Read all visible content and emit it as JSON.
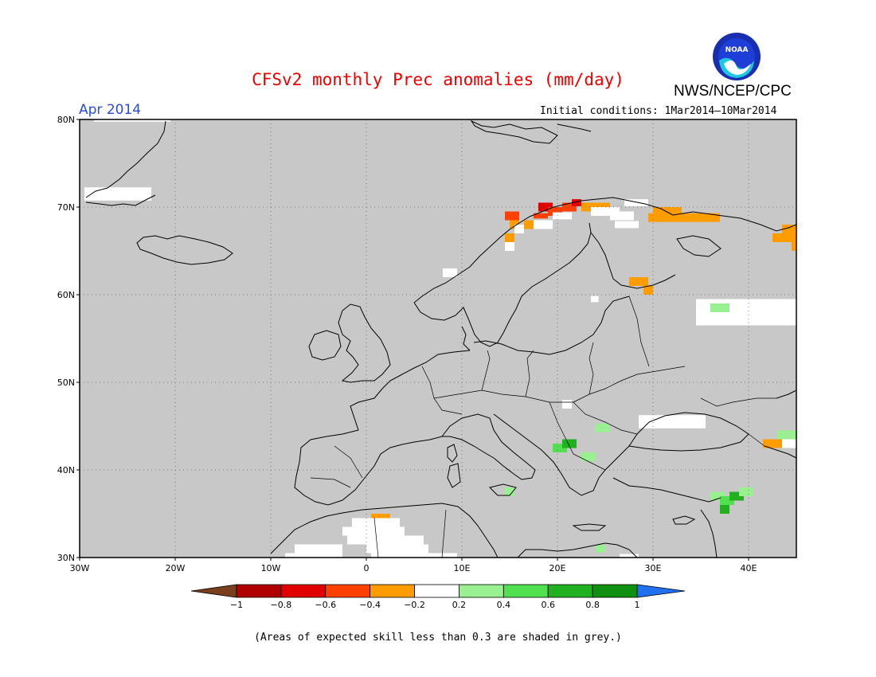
{
  "title": "CFSv2 monthly Prec anomalies (mm/day)",
  "agency": "NWS/NCEP/CPC",
  "logo_text": "NOAA",
  "month_label": "Apr 2014",
  "initial_conditions": "Initial conditions: 1Mar2014–10Mar2014",
  "footnote": "(Areas of expected skill less than 0.3 are shaded in grey.)",
  "map": {
    "lon_range": [
      -30,
      45
    ],
    "lat_range": [
      30,
      80
    ],
    "skill_mask_color": "#c8c8c8",
    "lat_labels": [
      "30N",
      "40N",
      "50N",
      "60N",
      "70N",
      "80N"
    ],
    "lon_labels": [
      "30W",
      "20W",
      "10W",
      "0",
      "10E",
      "20E",
      "30E",
      "40E"
    ]
  },
  "colorbar": {
    "labels": [
      "−1",
      "−0.8",
      "−0.6",
      "−0.4",
      "−0.2",
      "0.2",
      "0.4",
      "0.6",
      "0.8",
      "1"
    ],
    "colors": [
      "#7b3f1e",
      "#b00000",
      "#e00000",
      "#ff4000",
      "#ff9c00",
      "#ffffff",
      "#98f090",
      "#50e050",
      "#20b020",
      "#109010",
      "#2070f0"
    ]
  },
  "anomaly_cells": [
    {
      "lon": -28.5,
      "lat": 80.0,
      "w": 3.5,
      "h": 0.5,
      "c": "#ffffff"
    },
    {
      "lon": -25.0,
      "lat": 80.0,
      "w": 4.5,
      "h": 0.5,
      "c": "#ffffff"
    },
    {
      "lon": -29.5,
      "lat": 71.5,
      "w": 7.0,
      "h": 1.5,
      "c": "#ffffff"
    },
    {
      "lon": 8.0,
      "lat": 62.5,
      "w": 1.5,
      "h": 1.0,
      "c": "#ffffff"
    },
    {
      "lon": 14.5,
      "lat": 69.0,
      "w": 1.5,
      "h": 1.0,
      "c": "#ff4000"
    },
    {
      "lon": 15.0,
      "lat": 68.0,
      "w": 1.0,
      "h": 1.0,
      "c": "#ff9c00"
    },
    {
      "lon": 14.5,
      "lat": 66.5,
      "w": 1.0,
      "h": 1.0,
      "c": "#ff9c00"
    },
    {
      "lon": 15.5,
      "lat": 67.5,
      "w": 1.0,
      "h": 1.0,
      "c": "#ffffff"
    },
    {
      "lon": 14.5,
      "lat": 65.5,
      "w": 1.0,
      "h": 1.0,
      "c": "#ffffff"
    },
    {
      "lon": 16.5,
      "lat": 68.0,
      "w": 1.0,
      "h": 1.0,
      "c": "#ff9c00"
    },
    {
      "lon": 17.5,
      "lat": 69.0,
      "w": 1.5,
      "h": 0.6,
      "c": "#ff4000"
    },
    {
      "lon": 18.0,
      "lat": 70.0,
      "w": 1.5,
      "h": 1.0,
      "c": "#e00000"
    },
    {
      "lon": 19.0,
      "lat": 69.5,
      "w": 1.5,
      "h": 1.0,
      "c": "#ff4000"
    },
    {
      "lon": 20.5,
      "lat": 70.0,
      "w": 1.5,
      "h": 1.0,
      "c": "#ff4000"
    },
    {
      "lon": 21.5,
      "lat": 70.5,
      "w": 1.0,
      "h": 0.8,
      "c": "#e00000"
    },
    {
      "lon": 22.5,
      "lat": 70.0,
      "w": 3.0,
      "h": 1.0,
      "c": "#ff9c00"
    },
    {
      "lon": 23.5,
      "lat": 69.5,
      "w": 3.0,
      "h": 1.0,
      "c": "#ffffff"
    },
    {
      "lon": 25.5,
      "lat": 69.0,
      "w": 2.5,
      "h": 1.0,
      "c": "#ffffff"
    },
    {
      "lon": 17.5,
      "lat": 68.0,
      "w": 2.0,
      "h": 1.0,
      "c": "#ffffff"
    },
    {
      "lon": 19.5,
      "lat": 69.0,
      "w": 2.0,
      "h": 0.8,
      "c": "#ffffff"
    },
    {
      "lon": 27.0,
      "lat": 70.5,
      "w": 2.5,
      "h": 0.8,
      "c": "#ffffff"
    },
    {
      "lon": 26.0,
      "lat": 68.0,
      "w": 2.5,
      "h": 0.8,
      "c": "#ffffff"
    },
    {
      "lon": 30.0,
      "lat": 69.5,
      "w": 3.0,
      "h": 1.0,
      "c": "#ff9c00"
    },
    {
      "lon": 29.5,
      "lat": 68.8,
      "w": 7.5,
      "h": 1.0,
      "c": "#ff9c00"
    },
    {
      "lon": 43.5,
      "lat": 67.5,
      "w": 1.5,
      "h": 1.0,
      "c": "#ff9c00"
    },
    {
      "lon": 42.5,
      "lat": 66.5,
      "w": 2.5,
      "h": 1.0,
      "c": "#ff9c00"
    },
    {
      "lon": 44.5,
      "lat": 65.5,
      "w": 0.5,
      "h": 1.0,
      "c": "#ff9c00"
    },
    {
      "lon": 27.5,
      "lat": 61.5,
      "w": 2.0,
      "h": 1.0,
      "c": "#ff9c00"
    },
    {
      "lon": 29.0,
      "lat": 60.5,
      "w": 1.0,
      "h": 1.0,
      "c": "#ff9c00"
    },
    {
      "lon": 23.5,
      "lat": 59.5,
      "w": 0.8,
      "h": 0.7,
      "c": "#ffffff"
    },
    {
      "lon": 34.5,
      "lat": 58.0,
      "w": 10.5,
      "h": 3.0,
      "c": "#ffffff"
    },
    {
      "lon": 36.0,
      "lat": 58.5,
      "w": 2.0,
      "h": 1.0,
      "c": "#98f090"
    },
    {
      "lon": 20.5,
      "lat": 47.5,
      "w": 1.0,
      "h": 1.0,
      "c": "#ffffff"
    },
    {
      "lon": 28.5,
      "lat": 45.5,
      "w": 7.0,
      "h": 1.5,
      "c": "#ffffff"
    },
    {
      "lon": 24.0,
      "lat": 44.8,
      "w": 1.5,
      "h": 1.0,
      "c": "#98f090"
    },
    {
      "lon": 19.5,
      "lat": 42.5,
      "w": 1.5,
      "h": 1.0,
      "c": "#50e050"
    },
    {
      "lon": 20.5,
      "lat": 43.0,
      "w": 1.5,
      "h": 1.0,
      "c": "#20b020"
    },
    {
      "lon": 22.5,
      "lat": 41.5,
      "w": 1.5,
      "h": 1.0,
      "c": "#98f090"
    },
    {
      "lon": 41.5,
      "lat": 43.0,
      "w": 2.0,
      "h": 1.0,
      "c": "#ff9c00"
    },
    {
      "lon": 43.0,
      "lat": 44.0,
      "w": 2.0,
      "h": 1.0,
      "c": "#98f090"
    },
    {
      "lon": 43.5,
      "lat": 43.0,
      "w": 1.5,
      "h": 1.0,
      "c": "#ffffff"
    },
    {
      "lon": 14.5,
      "lat": 37.5,
      "w": 1.0,
      "h": 1.0,
      "c": "#98f090"
    },
    {
      "lon": 36.0,
      "lat": 37.0,
      "w": 1.5,
      "h": 1.0,
      "c": "#98f090"
    },
    {
      "lon": 37.0,
      "lat": 36.5,
      "w": 1.5,
      "h": 1.0,
      "c": "#50e050"
    },
    {
      "lon": 38.0,
      "lat": 37.0,
      "w": 1.5,
      "h": 1.0,
      "c": "#20b020"
    },
    {
      "lon": 37.0,
      "lat": 35.5,
      "w": 1.0,
      "h": 1.0,
      "c": "#20b020"
    },
    {
      "lon": 39.0,
      "lat": 37.5,
      "w": 1.5,
      "h": 1.0,
      "c": "#98f090"
    },
    {
      "lon": 0.5,
      "lat": 34.5,
      "w": 2.0,
      "h": 1.0,
      "c": "#ff9c00"
    },
    {
      "lon": -1.5,
      "lat": 34.0,
      "w": 5.0,
      "h": 1.0,
      "c": "#ffffff"
    },
    {
      "lon": -2.5,
      "lat": 33.0,
      "w": 6.5,
      "h": 1.0,
      "c": "#ffffff"
    },
    {
      "lon": -2.0,
      "lat": 32.0,
      "w": 8.0,
      "h": 1.0,
      "c": "#ffffff"
    },
    {
      "lon": -7.5,
      "lat": 31.0,
      "w": 5.0,
      "h": 1.0,
      "c": "#ffffff"
    },
    {
      "lon": -8.5,
      "lat": 30.0,
      "w": 6.0,
      "h": 1.0,
      "c": "#ffffff"
    },
    {
      "lon": 0.0,
      "lat": 31.0,
      "w": 6.5,
      "h": 1.0,
      "c": "#ffffff"
    },
    {
      "lon": 0.5,
      "lat": 30.0,
      "w": 9.0,
      "h": 1.0,
      "c": "#ffffff"
    },
    {
      "lon": 24.0,
      "lat": 31.0,
      "w": 1.0,
      "h": 0.8,
      "c": "#98f090"
    },
    {
      "lon": 26.5,
      "lat": 30.0,
      "w": 2.0,
      "h": 0.8,
      "c": "#ffffff"
    }
  ]
}
